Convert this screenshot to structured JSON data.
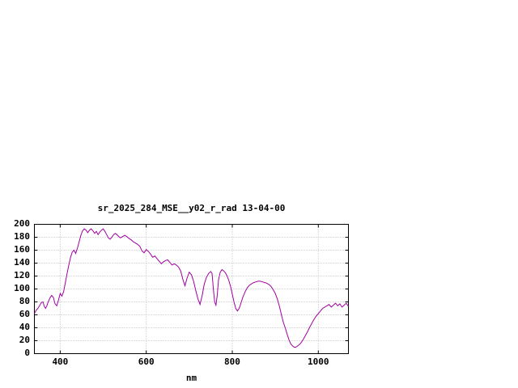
{
  "chart_data": {
    "type": "line",
    "title": "sr_2025_284_MSE__y02_r_rad 13-04-00",
    "xlabel": "nm",
    "ylabel": "",
    "xlim": [
      340,
      1070
    ],
    "ylim": [
      0,
      200
    ],
    "xticks": [
      400,
      600,
      800,
      1000
    ],
    "yticks": [
      0,
      20,
      40,
      60,
      80,
      100,
      120,
      140,
      160,
      180,
      200
    ],
    "grid": true,
    "legend": "none",
    "line_color": "#a000a0",
    "series": [
      {
        "name": "sr_2025_284_MSE__y02_r_rad",
        "points": [
          [
            340,
            62
          ],
          [
            344,
            67
          ],
          [
            348,
            70
          ],
          [
            352,
            74
          ],
          [
            356,
            79
          ],
          [
            360,
            80
          ],
          [
            363,
            73
          ],
          [
            366,
            70
          ],
          [
            369,
            74
          ],
          [
            372,
            80
          ],
          [
            376,
            86
          ],
          [
            380,
            90
          ],
          [
            384,
            87
          ],
          [
            388,
            77
          ],
          [
            392,
            74
          ],
          [
            396,
            83
          ],
          [
            400,
            93
          ],
          [
            404,
            89
          ],
          [
            408,
            96
          ],
          [
            412,
            110
          ],
          [
            416,
            124
          ],
          [
            420,
            137
          ],
          [
            424,
            149
          ],
          [
            428,
            157
          ],
          [
            432,
            160
          ],
          [
            436,
            155
          ],
          [
            440,
            163
          ],
          [
            444,
            173
          ],
          [
            448,
            183
          ],
          [
            452,
            190
          ],
          [
            456,
            193
          ],
          [
            460,
            191
          ],
          [
            464,
            187
          ],
          [
            468,
            191
          ],
          [
            472,
            193
          ],
          [
            476,
            190
          ],
          [
            480,
            186
          ],
          [
            484,
            189
          ],
          [
            488,
            184
          ],
          [
            492,
            188
          ],
          [
            496,
            191
          ],
          [
            500,
            193
          ],
          [
            504,
            189
          ],
          [
            508,
            184
          ],
          [
            512,
            179
          ],
          [
            516,
            177
          ],
          [
            520,
            180
          ],
          [
            524,
            184
          ],
          [
            528,
            186
          ],
          [
            532,
            184
          ],
          [
            536,
            181
          ],
          [
            540,
            179
          ],
          [
            545,
            181
          ],
          [
            550,
            183
          ],
          [
            555,
            181
          ],
          [
            560,
            178
          ],
          [
            565,
            176
          ],
          [
            570,
            173
          ],
          [
            575,
            171
          ],
          [
            580,
            169
          ],
          [
            585,
            166
          ],
          [
            590,
            159
          ],
          [
            595,
            156
          ],
          [
            600,
            161
          ],
          [
            605,
            158
          ],
          [
            610,
            154
          ],
          [
            615,
            149
          ],
          [
            620,
            151
          ],
          [
            625,
            147
          ],
          [
            630,
            143
          ],
          [
            635,
            139
          ],
          [
            640,
            142
          ],
          [
            645,
            144
          ],
          [
            650,
            145
          ],
          [
            655,
            141
          ],
          [
            660,
            137
          ],
          [
            665,
            139
          ],
          [
            670,
            137
          ],
          [
            675,
            134
          ],
          [
            680,
            128
          ],
          [
            685,
            115
          ],
          [
            690,
            105
          ],
          [
            695,
            117
          ],
          [
            700,
            126
          ],
          [
            705,
            122
          ],
          [
            710,
            112
          ],
          [
            715,
            98
          ],
          [
            720,
            85
          ],
          [
            725,
            76
          ],
          [
            730,
            90
          ],
          [
            735,
            108
          ],
          [
            740,
            118
          ],
          [
            745,
            124
          ],
          [
            750,
            127
          ],
          [
            753,
            124
          ],
          [
            756,
            100
          ],
          [
            759,
            80
          ],
          [
            762,
            75
          ],
          [
            765,
            90
          ],
          [
            768,
            114
          ],
          [
            772,
            126
          ],
          [
            776,
            130
          ],
          [
            780,
            128
          ],
          [
            784,
            125
          ],
          [
            788,
            120
          ],
          [
            792,
            113
          ],
          [
            796,
            104
          ],
          [
            800,
            92
          ],
          [
            804,
            80
          ],
          [
            808,
            70
          ],
          [
            812,
            66
          ],
          [
            816,
            70
          ],
          [
            820,
            78
          ],
          [
            825,
            88
          ],
          [
            830,
            96
          ],
          [
            835,
            102
          ],
          [
            840,
            106
          ],
          [
            845,
            108
          ],
          [
            850,
            110
          ],
          [
            855,
            111
          ],
          [
            860,
            112
          ],
          [
            865,
            112
          ],
          [
            870,
            111
          ],
          [
            875,
            110
          ],
          [
            880,
            109
          ],
          [
            885,
            107
          ],
          [
            890,
            104
          ],
          [
            895,
            99
          ],
          [
            900,
            93
          ],
          [
            905,
            84
          ],
          [
            910,
            72
          ],
          [
            915,
            58
          ],
          [
            918,
            50
          ],
          [
            921,
            44
          ],
          [
            924,
            38
          ],
          [
            928,
            29
          ],
          [
            932,
            21
          ],
          [
            936,
            15
          ],
          [
            940,
            12
          ],
          [
            944,
            10
          ],
          [
            948,
            10
          ],
          [
            952,
            12
          ],
          [
            956,
            14
          ],
          [
            960,
            17
          ],
          [
            965,
            22
          ],
          [
            970,
            28
          ],
          [
            975,
            34
          ],
          [
            980,
            41
          ],
          [
            985,
            47
          ],
          [
            990,
            53
          ],
          [
            995,
            58
          ],
          [
            1000,
            62
          ],
          [
            1005,
            66
          ],
          [
            1010,
            70
          ],
          [
            1015,
            72
          ],
          [
            1020,
            74
          ],
          [
            1025,
            76
          ],
          [
            1030,
            72
          ],
          [
            1035,
            75
          ],
          [
            1040,
            78
          ],
          [
            1045,
            74
          ],
          [
            1050,
            77
          ],
          [
            1055,
            72
          ],
          [
            1060,
            75
          ],
          [
            1065,
            78
          ],
          [
            1070,
            73
          ]
        ]
      }
    ]
  }
}
